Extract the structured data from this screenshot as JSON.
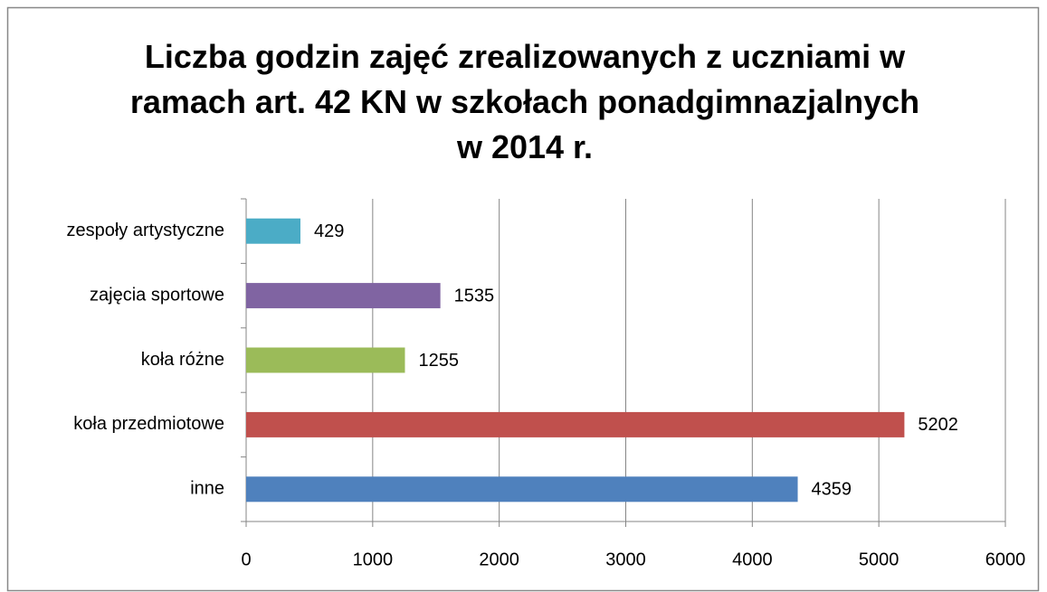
{
  "chart_data": {
    "type": "bar",
    "orientation": "horizontal",
    "title": "Liczba godzin zajęć zrealizowanych z uczniami w ramach art. 42 KN w szkołach ponadgimnazjalnych w 2014 r.",
    "categories": [
      "inne",
      "koła przedmiotowe",
      "koła różne",
      "zajęcia sportowe",
      "zespoły artystyczne"
    ],
    "values": [
      4359,
      5202,
      1255,
      1535,
      429
    ],
    "colors": [
      "#4f81bd",
      "#c0504d",
      "#9bbb59",
      "#8064a2",
      "#4bacc6"
    ],
    "xlim": [
      0,
      6000
    ],
    "xticks": [
      0,
      1000,
      2000,
      3000,
      4000,
      5000,
      6000
    ],
    "grid": true
  }
}
